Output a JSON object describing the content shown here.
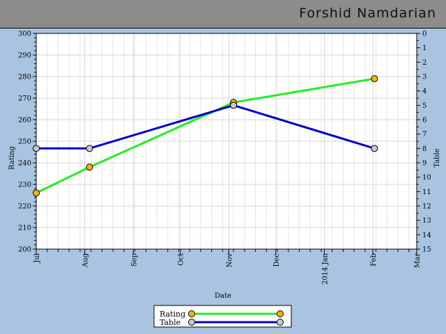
{
  "header": {
    "title": "Forshid Namdarian"
  },
  "chart_data": {
    "type": "line",
    "xlabel": "Date",
    "ylabel": "Rating",
    "y2label": "Table",
    "ylim": [
      200,
      300
    ],
    "y2lim": [
      0,
      15
    ],
    "y2_reversed": true,
    "x_ticks": [
      "Jul",
      "Aug",
      "Sep",
      "Oct",
      "Nov",
      "Dec",
      "2014 Jan",
      "Feb",
      "Mar"
    ],
    "grid": true,
    "legend_position": "bottom-center",
    "series": [
      {
        "name": "Rating",
        "axis": "left",
        "color": "#22ee22",
        "marker_color": "#f5b400",
        "points": [
          {
            "x": "2013-07-01",
            "y": 226
          },
          {
            "x": "2013-08-04",
            "y": 238
          },
          {
            "x": "2013-11-04",
            "y": 268
          },
          {
            "x": "2014-02-02",
            "y": 279
          }
        ]
      },
      {
        "name": "Table",
        "axis": "right",
        "color": "#0000cc",
        "marker_color": "#c8c8d2",
        "points": [
          {
            "x": "2013-07-01",
            "y": 8
          },
          {
            "x": "2013-08-04",
            "y": 8
          },
          {
            "x": "2013-11-04",
            "y": 5
          },
          {
            "x": "2014-02-02",
            "y": 8
          }
        ]
      }
    ]
  }
}
